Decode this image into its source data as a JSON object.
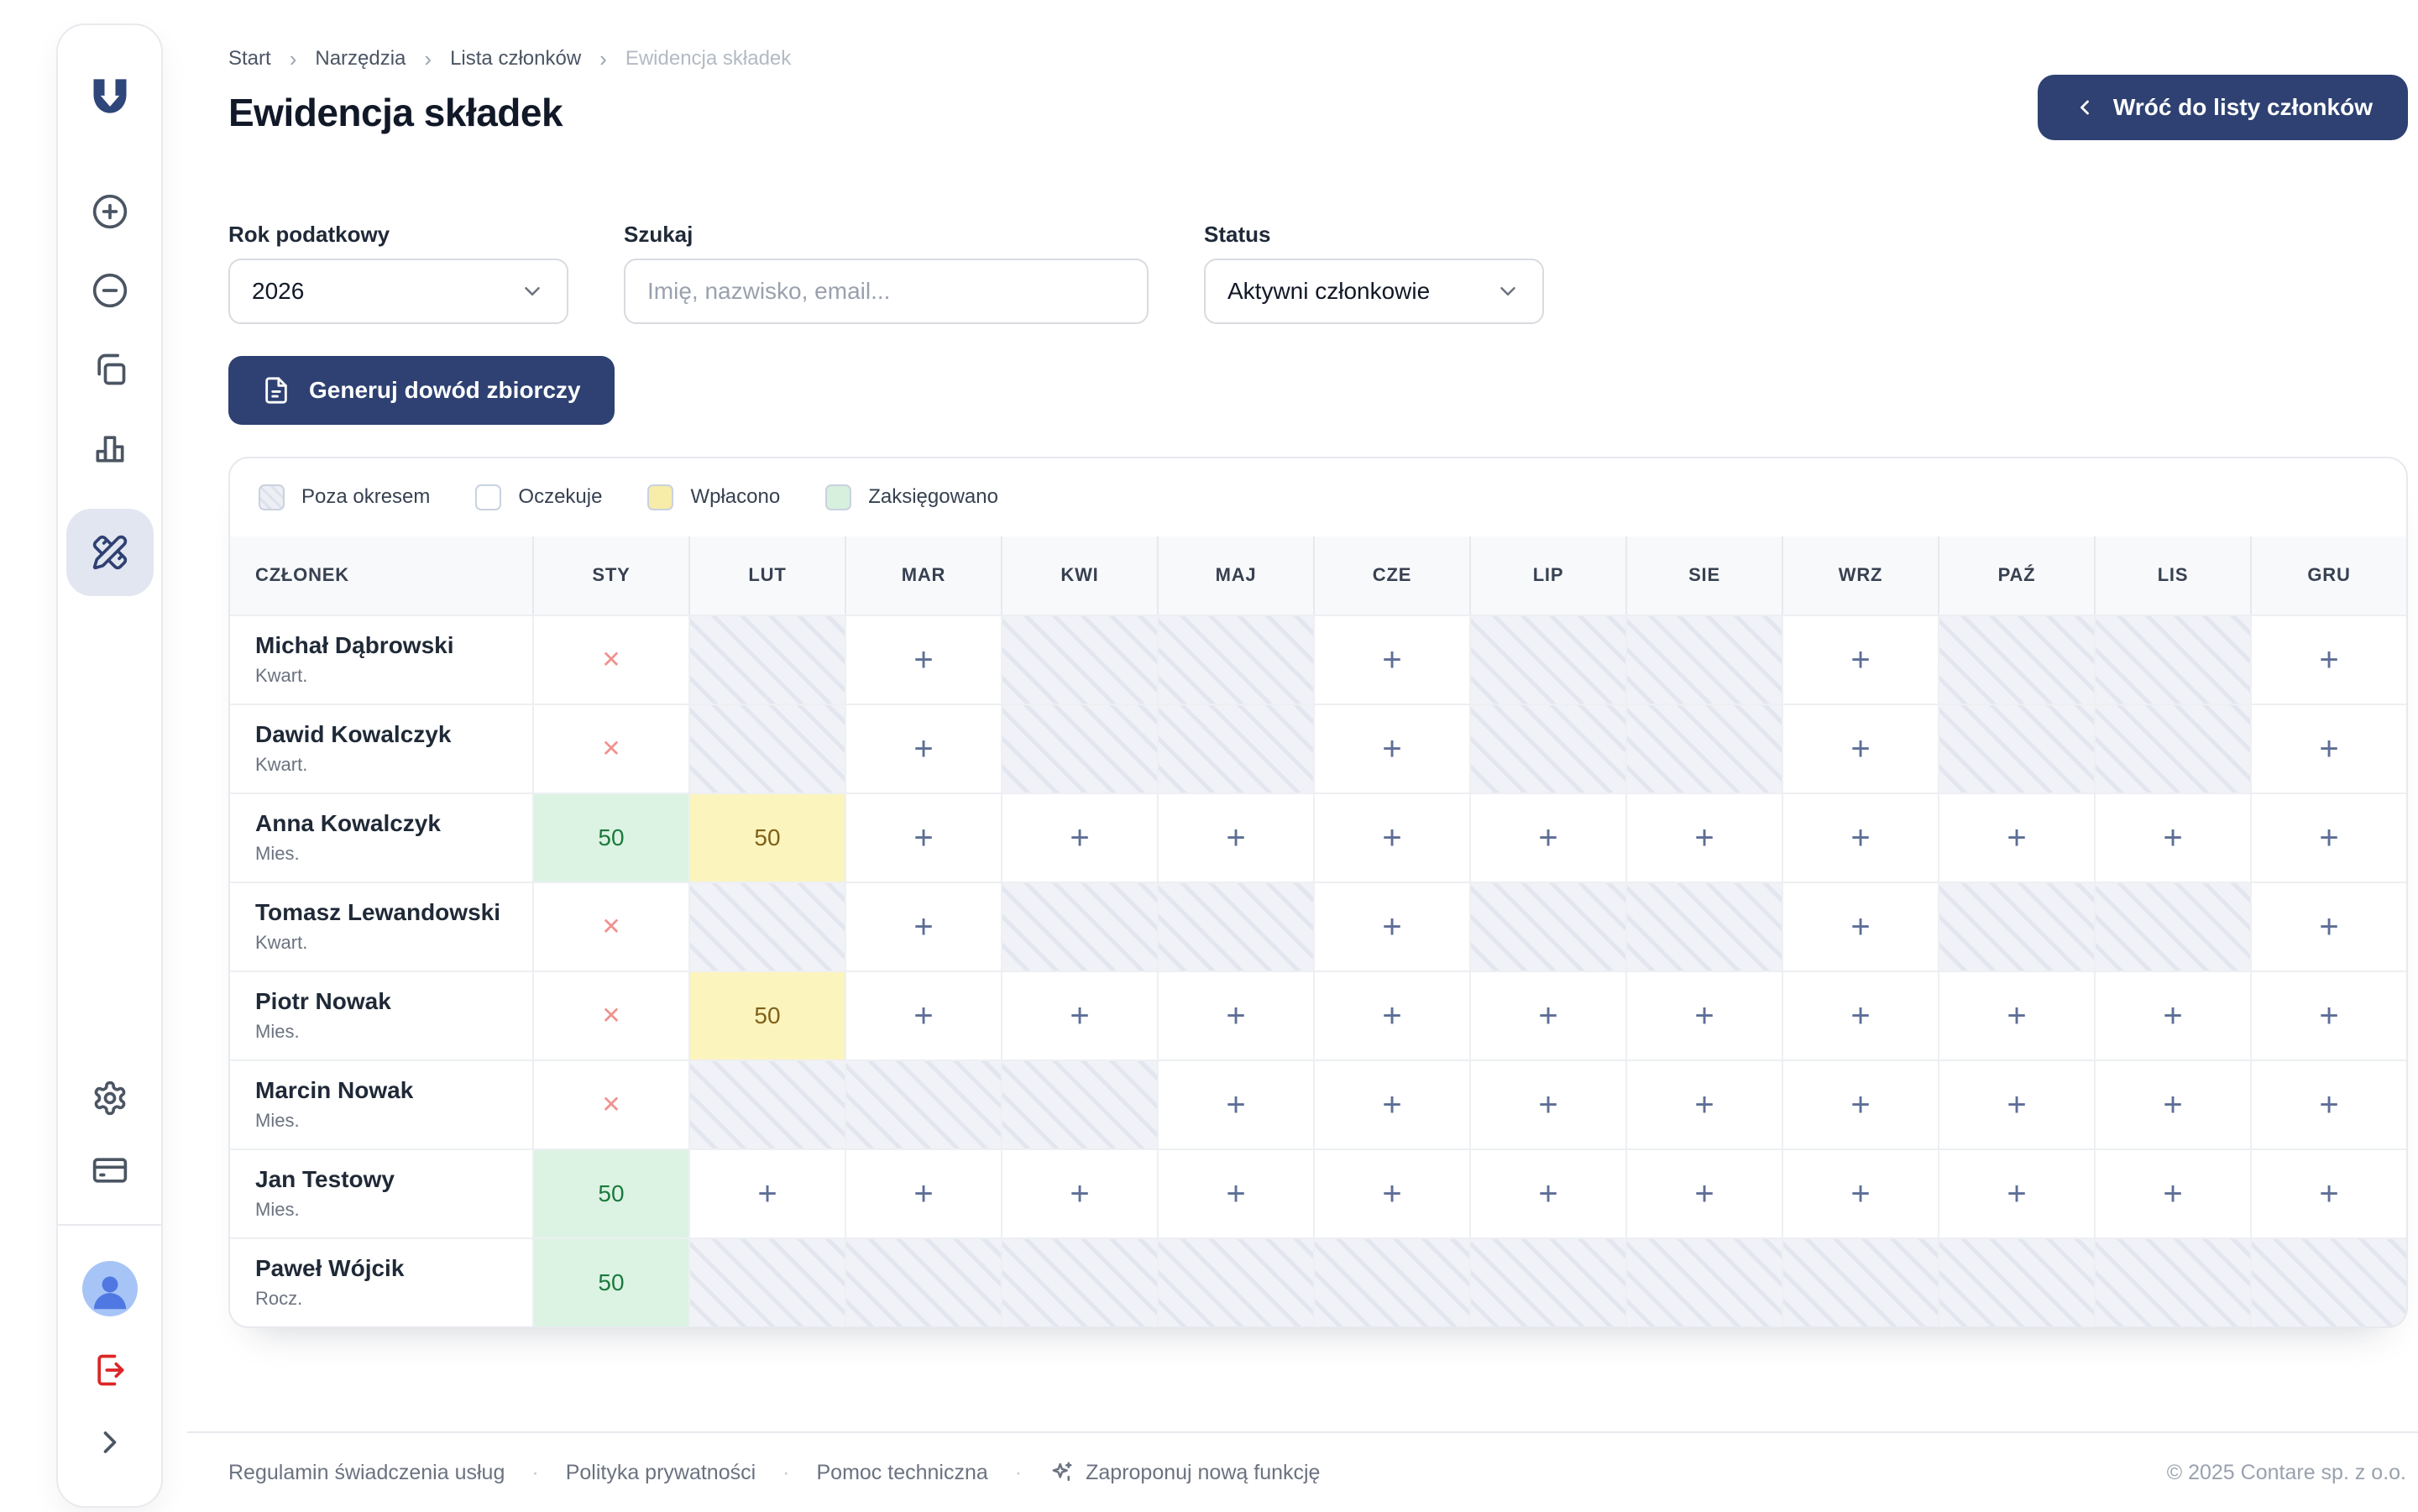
{
  "breadcrumb": {
    "items": [
      "Start",
      "Narzędzia",
      "Lista członków"
    ],
    "current": "Ewidencja składek",
    "separator": "›"
  },
  "header": {
    "title": "Ewidencja składek",
    "back_button": "Wróć do listy członków"
  },
  "filters": {
    "year_label": "Rok podatkowy",
    "year_value": "2026",
    "search_label": "Szukaj",
    "search_placeholder": "Imię, nazwisko, email...",
    "status_label": "Status",
    "status_value": "Aktywni członkowie"
  },
  "actions": {
    "generate_label": "Generuj dowód zbiorczy"
  },
  "legend": [
    {
      "label": "Poza okresem",
      "type": "out"
    },
    {
      "label": "Oczekuje",
      "type": "pending"
    },
    {
      "label": "Wpłacono",
      "type": "paid"
    },
    {
      "label": "Zaksięgowano",
      "type": "booked"
    }
  ],
  "table": {
    "member_header": "CZŁONEK",
    "months": [
      "STY",
      "LUT",
      "MAR",
      "KWI",
      "MAJ",
      "CZE",
      "LIP",
      "SIE",
      "WRZ",
      "PAŹ",
      "LIS",
      "GRU"
    ],
    "symbols": {
      "add": "+",
      "missed": "✕"
    },
    "rows": [
      {
        "name": "Michał Dąbrowski",
        "period": "Kwart.",
        "cells": [
          {
            "state": "missed"
          },
          {
            "state": "out"
          },
          {
            "state": "add"
          },
          {
            "state": "out"
          },
          {
            "state": "out"
          },
          {
            "state": "add"
          },
          {
            "state": "out"
          },
          {
            "state": "out"
          },
          {
            "state": "add"
          },
          {
            "state": "out"
          },
          {
            "state": "out"
          },
          {
            "state": "add"
          }
        ]
      },
      {
        "name": "Dawid Kowalczyk",
        "period": "Kwart.",
        "cells": [
          {
            "state": "missed"
          },
          {
            "state": "out"
          },
          {
            "state": "add"
          },
          {
            "state": "out"
          },
          {
            "state": "out"
          },
          {
            "state": "add"
          },
          {
            "state": "out"
          },
          {
            "state": "out"
          },
          {
            "state": "add"
          },
          {
            "state": "out"
          },
          {
            "state": "out"
          },
          {
            "state": "add"
          }
        ]
      },
      {
        "name": "Anna Kowalczyk",
        "period": "Mies.",
        "cells": [
          {
            "state": "booked",
            "value": "50"
          },
          {
            "state": "paid",
            "value": "50"
          },
          {
            "state": "add"
          },
          {
            "state": "add"
          },
          {
            "state": "add"
          },
          {
            "state": "add"
          },
          {
            "state": "add"
          },
          {
            "state": "add"
          },
          {
            "state": "add"
          },
          {
            "state": "add"
          },
          {
            "state": "add"
          },
          {
            "state": "add"
          }
        ]
      },
      {
        "name": "Tomasz Lewandowski",
        "period": "Kwart.",
        "cells": [
          {
            "state": "missed"
          },
          {
            "state": "out"
          },
          {
            "state": "add"
          },
          {
            "state": "out"
          },
          {
            "state": "out"
          },
          {
            "state": "add"
          },
          {
            "state": "out"
          },
          {
            "state": "out"
          },
          {
            "state": "add"
          },
          {
            "state": "out"
          },
          {
            "state": "out"
          },
          {
            "state": "add"
          }
        ]
      },
      {
        "name": "Piotr Nowak",
        "period": "Mies.",
        "cells": [
          {
            "state": "missed"
          },
          {
            "state": "paid",
            "value": "50"
          },
          {
            "state": "add"
          },
          {
            "state": "add"
          },
          {
            "state": "add"
          },
          {
            "state": "add"
          },
          {
            "state": "add"
          },
          {
            "state": "add"
          },
          {
            "state": "add"
          },
          {
            "state": "add"
          },
          {
            "state": "add"
          },
          {
            "state": "add"
          }
        ]
      },
      {
        "name": "Marcin Nowak",
        "period": "Mies.",
        "cells": [
          {
            "state": "missed"
          },
          {
            "state": "out"
          },
          {
            "state": "out"
          },
          {
            "state": "out"
          },
          {
            "state": "add"
          },
          {
            "state": "add"
          },
          {
            "state": "add"
          },
          {
            "state": "add"
          },
          {
            "state": "add"
          },
          {
            "state": "add"
          },
          {
            "state": "add"
          },
          {
            "state": "add"
          }
        ]
      },
      {
        "name": "Jan Testowy",
        "period": "Mies.",
        "cells": [
          {
            "state": "booked",
            "value": "50"
          },
          {
            "state": "add"
          },
          {
            "state": "add"
          },
          {
            "state": "add"
          },
          {
            "state": "add"
          },
          {
            "state": "add"
          },
          {
            "state": "add"
          },
          {
            "state": "add"
          },
          {
            "state": "add"
          },
          {
            "state": "add"
          },
          {
            "state": "add"
          },
          {
            "state": "add"
          }
        ]
      },
      {
        "name": "Paweł Wójcik",
        "period": "Rocz.",
        "cells": [
          {
            "state": "booked",
            "value": "50"
          },
          {
            "state": "out"
          },
          {
            "state": "out"
          },
          {
            "state": "out"
          },
          {
            "state": "out"
          },
          {
            "state": "out"
          },
          {
            "state": "out"
          },
          {
            "state": "out"
          },
          {
            "state": "out"
          },
          {
            "state": "out"
          },
          {
            "state": "out"
          },
          {
            "state": "out"
          }
        ]
      }
    ]
  },
  "sidebar": {
    "icons": [
      "logo",
      "circle-plus-icon",
      "circle-minus-icon",
      "copy-icon",
      "bar-chart-icon",
      "pencil-ruler-icon",
      "settings-icon",
      "credit-card-icon",
      "avatar",
      "log-out-icon",
      "chevron-right-icon"
    ],
    "active_icon": "pencil-ruler-icon"
  },
  "footer": {
    "links": [
      "Regulamin świadczenia usług",
      "Polityka prywatności",
      "Pomoc techniczna"
    ],
    "suggest_label": "Zaproponuj nową funkcję",
    "separator": "·",
    "copyright": "© 2025 Contare sp. z o.o."
  },
  "colors": {
    "navy": "#2e4172",
    "active_item_bg": "#e2e6f1",
    "paid_bg": "#fbf4bd",
    "paid_text": "#806018",
    "booked_bg": "#dcf3e3",
    "booked_text": "#1b7a3e",
    "missed_x": "#f0918d",
    "add_plus": "#5d6e96",
    "out_bg": "#f1f2f7",
    "logout_red": "#dc2626"
  }
}
